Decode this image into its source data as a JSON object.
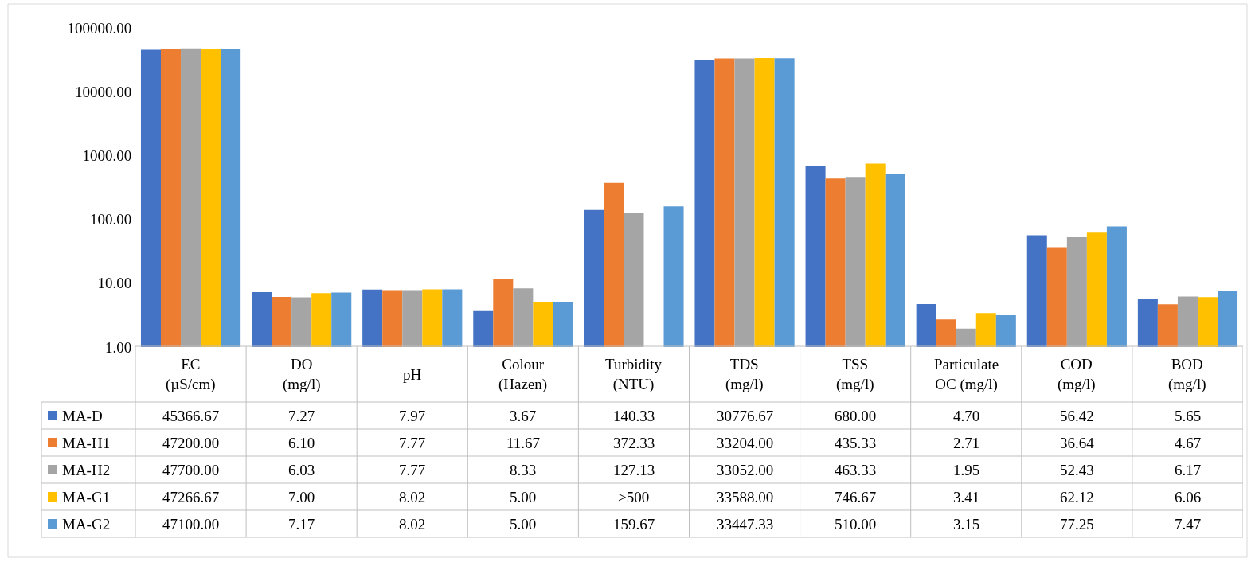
{
  "chart_data": {
    "type": "bar",
    "categories": [
      "EC (µS/cm)",
      "DO (mg/l)",
      "pH",
      "Colour (Hazen)",
      "Turbidity (NTU)",
      "TDS (mg/l)",
      "TSS (mg/l)",
      "Particulate OC (mg/l)",
      "COD (mg/l)",
      "BOD (mg/l)"
    ],
    "series": [
      {
        "name": "MA-D",
        "color": "#4472c4",
        "values": [
          45366.67,
          7.27,
          7.97,
          3.67,
          140.33,
          30776.67,
          680.0,
          4.7,
          56.42,
          5.65
        ],
        "value_labels": [
          "45366.67",
          "7.27",
          "7.97",
          "3.67",
          "140.33",
          "30776.67",
          "680.00",
          "4.70",
          "56.42",
          "5.65"
        ]
      },
      {
        "name": "MA-H1",
        "color": "#ed7d31",
        "values": [
          47200.0,
          6.1,
          7.77,
          11.67,
          372.33,
          33204.0,
          435.33,
          2.71,
          36.64,
          4.67
        ],
        "value_labels": [
          "47200.00",
          "6.10",
          "7.77",
          "11.67",
          "372.33",
          "33204.00",
          "435.33",
          "2.71",
          "36.64",
          "4.67"
        ]
      },
      {
        "name": "MA-H2",
        "color": "#a5a5a5",
        "values": [
          47700.0,
          6.03,
          7.77,
          8.33,
          127.13,
          33052.0,
          463.33,
          1.95,
          52.43,
          6.17
        ],
        "value_labels": [
          "47700.00",
          "6.03",
          "7.77",
          "8.33",
          "127.13",
          "33052.00",
          "463.33",
          "1.95",
          "52.43",
          "6.17"
        ]
      },
      {
        "name": "MA-G1",
        "color": "#ffc000",
        "values": [
          47266.67,
          7.0,
          8.02,
          5.0,
          null,
          33588.0,
          746.67,
          3.41,
          62.12,
          6.06
        ],
        "value_labels": [
          "47266.67",
          "7.00",
          "8.02",
          "5.00",
          ">500",
          "33588.00",
          "746.67",
          "3.41",
          "62.12",
          "6.06"
        ]
      },
      {
        "name": "MA-G2",
        "color": "#5b9bd5",
        "values": [
          47100.0,
          7.17,
          8.02,
          5.0,
          159.67,
          33447.33,
          510.0,
          3.15,
          77.25,
          7.47
        ],
        "value_labels": [
          "47100.00",
          "7.17",
          "8.02",
          "5.00",
          "159.67",
          "33447.33",
          "510.00",
          "3.15",
          "77.25",
          "7.47"
        ]
      }
    ],
    "log": "y",
    "ylim": [
      1,
      100000
    ],
    "yticks": [
      {
        "value": 1,
        "label": "1.00"
      },
      {
        "value": 10,
        "label": "10.00"
      },
      {
        "value": 100,
        "label": "100.00"
      },
      {
        "value": 1000,
        "label": "1000.00"
      },
      {
        "value": 10000,
        "label": "10000.00"
      },
      {
        "value": 100000,
        "label": "100000.00"
      }
    ],
    "grid": false,
    "legend": "bottom left"
  }
}
